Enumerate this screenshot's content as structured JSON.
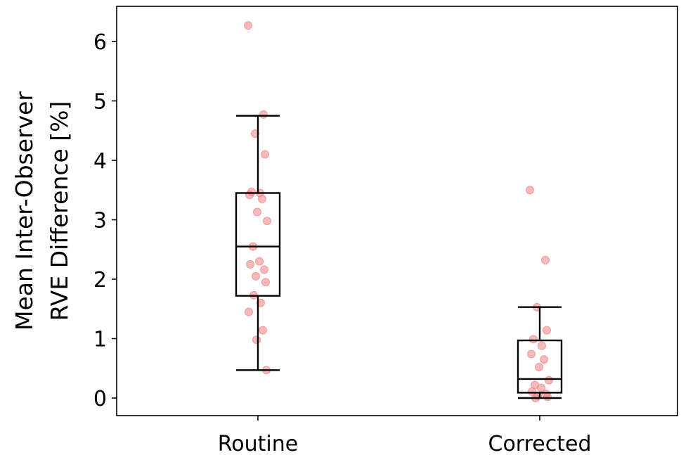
{
  "chart_data": {
    "type": "box",
    "title": "",
    "xlabel": "",
    "ylabel_lines": [
      "Mean Inter-Observer",
      "RVE Difference [%]"
    ],
    "categories": [
      "Routine",
      "Corrected"
    ],
    "ylim": [
      -0.3,
      6.6
    ],
    "yticks": [
      0,
      1,
      2,
      3,
      4,
      5,
      6
    ],
    "grid": false,
    "legend": "none",
    "point_color": "#f08080",
    "box_color": "#000000",
    "boxes": [
      {
        "name": "Routine",
        "whisker_low": 0.47,
        "q1": 1.72,
        "median": 2.55,
        "q3": 3.45,
        "whisker_high": 4.75
      },
      {
        "name": "Corrected",
        "whisker_low": 0.0,
        "q1": 0.09,
        "median": 0.32,
        "q3": 0.97,
        "whisker_high": 1.53
      }
    ],
    "points": [
      {
        "group": "Routine",
        "values": [
          6.27,
          4.77,
          4.45,
          4.1,
          3.47,
          3.45,
          3.42,
          3.35,
          3.13,
          2.98,
          2.55,
          2.3,
          2.25,
          2.16,
          2.05,
          1.95,
          1.73,
          1.6,
          1.45,
          1.14,
          0.98,
          0.47
        ]
      },
      {
        "group": "Corrected",
        "values": [
          3.5,
          2.32,
          1.53,
          1.14,
          0.99,
          0.88,
          0.74,
          0.65,
          0.52,
          0.3,
          0.22,
          0.17,
          0.11,
          0.07,
          0.04,
          0.02,
          0.0
        ]
      }
    ]
  }
}
